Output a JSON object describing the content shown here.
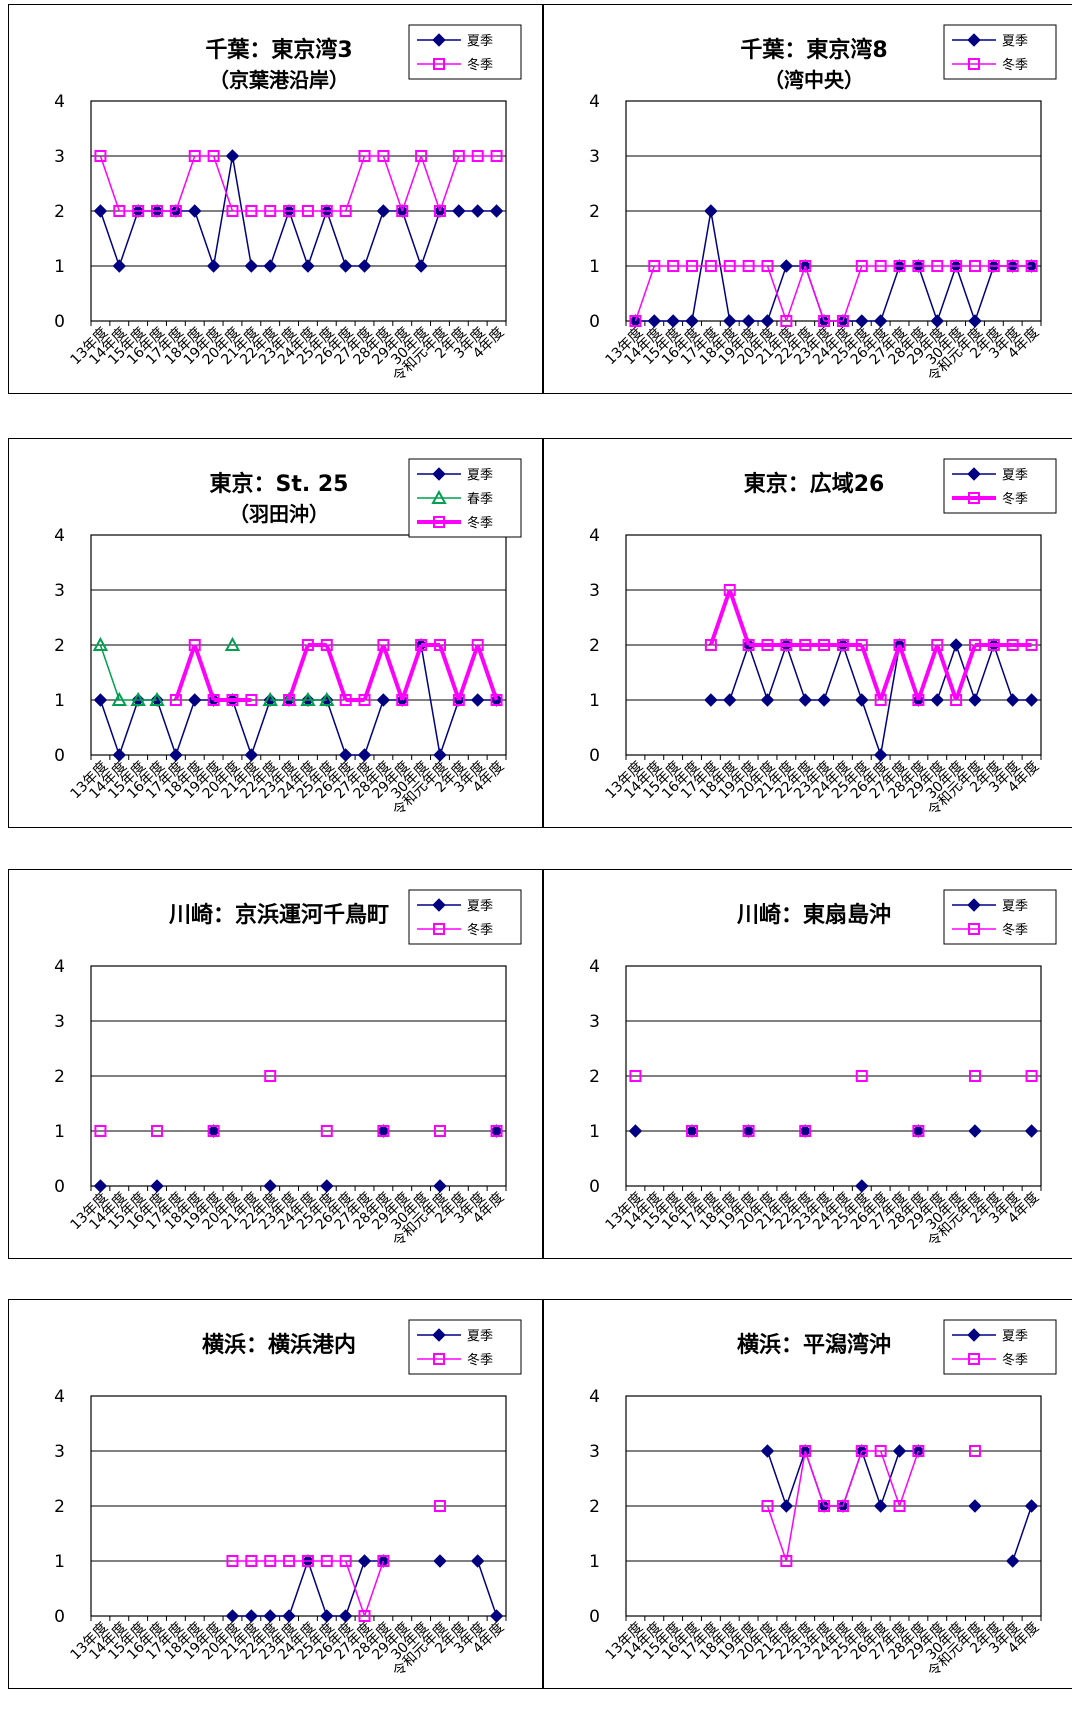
{
  "chart_data": [
    {
      "type": "line",
      "title": "千葉：東京湾3",
      "subtitle": "（京葉港沿岸）",
      "categories": [
        "13年度",
        "14年度",
        "15年度",
        "16年度",
        "17年度",
        "18年度",
        "19年度",
        "20年度",
        "21年度",
        "22年度",
        "23年度",
        "24年度",
        "25年度",
        "26年度",
        "27年度",
        "28年度",
        "29年度",
        "30年度",
        "令和元年度",
        "2年度",
        "3年度",
        "4年度"
      ],
      "ylim": [
        0,
        4
      ],
      "yticks": [
        "0",
        "1",
        "2",
        "3",
        "4"
      ],
      "series": [
        {
          "name": "夏季",
          "color": "#000080",
          "marker": "diamond",
          "values": [
            2,
            1,
            2,
            2,
            2,
            2,
            1,
            3,
            1,
            1,
            2,
            1,
            2,
            1,
            1,
            2,
            2,
            1,
            2,
            2,
            2,
            2
          ]
        },
        {
          "name": "冬季",
          "color": "#ff00ff",
          "marker": "square",
          "values": [
            3,
            2,
            2,
            2,
            2,
            3,
            3,
            2,
            2,
            2,
            2,
            2,
            2,
            2,
            3,
            3,
            2,
            3,
            2,
            3,
            3,
            3
          ]
        }
      ]
    },
    {
      "type": "line",
      "title": "千葉：東京湾8",
      "subtitle": "（湾中央）",
      "categories": [
        "13年度",
        "14年度",
        "15年度",
        "16年度",
        "17年度",
        "18年度",
        "19年度",
        "20年度",
        "21年度",
        "22年度",
        "23年度",
        "24年度",
        "25年度",
        "26年度",
        "27年度",
        "28年度",
        "29年度",
        "30年度",
        "令和元年度",
        "2年度",
        "3年度",
        "4年度"
      ],
      "ylim": [
        0,
        4
      ],
      "yticks": [
        "0",
        "1",
        "2",
        "3",
        "4"
      ],
      "series": [
        {
          "name": "夏季",
          "color": "#000080",
          "marker": "diamond",
          "values": [
            0,
            0,
            0,
            0,
            2,
            0,
            0,
            0,
            1,
            1,
            0,
            0,
            0,
            0,
            1,
            1,
            0,
            1,
            0,
            1,
            1,
            1
          ]
        },
        {
          "name": "冬季",
          "color": "#ff00ff",
          "marker": "square",
          "values": [
            0,
            1,
            1,
            1,
            1,
            1,
            1,
            1,
            0,
            1,
            0,
            0,
            1,
            1,
            1,
            1,
            1,
            1,
            1,
            1,
            1,
            1
          ]
        }
      ]
    },
    {
      "type": "line",
      "title": "東京：St. 25",
      "subtitle": "（羽田沖）",
      "categories": [
        "13年度",
        "14年度",
        "15年度",
        "16年度",
        "17年度",
        "18年度",
        "19年度",
        "20年度",
        "21年度",
        "22年度",
        "23年度",
        "24年度",
        "25年度",
        "26年度",
        "27年度",
        "28年度",
        "29年度",
        "30年度",
        "令和元年度",
        "2年度",
        "3年度",
        "4年度"
      ],
      "ylim": [
        0,
        4
      ],
      "yticks": [
        "0",
        "1",
        "2",
        "3",
        "4"
      ],
      "series": [
        {
          "name": "夏季",
          "color": "#000080",
          "marker": "diamond",
          "values": [
            1,
            0,
            1,
            1,
            0,
            1,
            1,
            1,
            0,
            1,
            1,
            1,
            1,
            0,
            0,
            1,
            1,
            2,
            0,
            1,
            1,
            1
          ]
        },
        {
          "name": "春季",
          "color": "#00a050",
          "marker": "triangle",
          "values": [
            2,
            1,
            1,
            1,
            null,
            null,
            null,
            2,
            null,
            1,
            1,
            1,
            1,
            null,
            null,
            null,
            null,
            null,
            null,
            null,
            null,
            null
          ]
        },
        {
          "name": "冬季",
          "color": "#ff00ff",
          "marker": "square",
          "width": 4,
          "values": [
            null,
            null,
            null,
            null,
            1,
            2,
            1,
            1,
            1,
            null,
            1,
            2,
            2,
            1,
            1,
            2,
            1,
            2,
            2,
            1,
            2,
            1
          ]
        }
      ]
    },
    {
      "type": "line",
      "title": "東京：広域26",
      "subtitle": "",
      "categories": [
        "13年度",
        "14年度",
        "15年度",
        "16年度",
        "17年度",
        "18年度",
        "19年度",
        "20年度",
        "21年度",
        "22年度",
        "23年度",
        "24年度",
        "25年度",
        "26年度",
        "27年度",
        "28年度",
        "29年度",
        "30年度",
        "令和元年度",
        "2年度",
        "3年度",
        "4年度"
      ],
      "ylim": [
        0,
        4
      ],
      "yticks": [
        "0",
        "1",
        "2",
        "3",
        "4"
      ],
      "series": [
        {
          "name": "夏季",
          "color": "#000080",
          "marker": "diamond",
          "values": [
            null,
            null,
            null,
            null,
            1,
            1,
            2,
            1,
            2,
            1,
            1,
            2,
            1,
            0,
            2,
            1,
            1,
            2,
            1,
            2,
            1,
            1
          ]
        },
        {
          "name": "冬季",
          "color": "#ff00ff",
          "marker": "square",
          "width": 4,
          "values": [
            null,
            null,
            null,
            null,
            2,
            3,
            2,
            2,
            2,
            2,
            2,
            2,
            2,
            1,
            2,
            1,
            2,
            1,
            2,
            2,
            2,
            2
          ]
        }
      ]
    },
    {
      "type": "line",
      "title": "川崎：京浜運河千鳥町",
      "subtitle": "",
      "categories": [
        "13年度",
        "14年度",
        "15年度",
        "16年度",
        "17年度",
        "18年度",
        "19年度",
        "20年度",
        "21年度",
        "22年度",
        "23年度",
        "24年度",
        "25年度",
        "26年度",
        "27年度",
        "28年度",
        "29年度",
        "30年度",
        "令和元年度",
        "2年度",
        "3年度",
        "4年度"
      ],
      "ylim": [
        0,
        4
      ],
      "yticks": [
        "0",
        "1",
        "2",
        "3",
        "4"
      ],
      "series": [
        {
          "name": "夏季",
          "color": "#000080",
          "marker": "diamond",
          "values": [
            0,
            null,
            null,
            0,
            null,
            null,
            1,
            null,
            null,
            0,
            null,
            null,
            0,
            null,
            null,
            1,
            null,
            null,
            0,
            null,
            null,
            1
          ]
        },
        {
          "name": "冬季",
          "color": "#ff00ff",
          "marker": "square",
          "values": [
            1,
            null,
            null,
            1,
            null,
            null,
            1,
            null,
            null,
            2,
            null,
            null,
            1,
            null,
            null,
            1,
            null,
            null,
            1,
            null,
            null,
            1
          ]
        }
      ]
    },
    {
      "type": "line",
      "title": "川崎：東扇島沖",
      "subtitle": "",
      "categories": [
        "13年度",
        "14年度",
        "15年度",
        "16年度",
        "17年度",
        "18年度",
        "19年度",
        "20年度",
        "21年度",
        "22年度",
        "23年度",
        "24年度",
        "25年度",
        "26年度",
        "27年度",
        "28年度",
        "29年度",
        "30年度",
        "令和元年度",
        "2年度",
        "3年度",
        "4年度"
      ],
      "ylim": [
        0,
        4
      ],
      "yticks": [
        "0",
        "1",
        "2",
        "3",
        "4"
      ],
      "series": [
        {
          "name": "夏季",
          "color": "#000080",
          "marker": "diamond",
          "values": [
            1,
            null,
            null,
            1,
            null,
            null,
            1,
            null,
            null,
            1,
            null,
            null,
            0,
            null,
            null,
            1,
            null,
            null,
            1,
            null,
            null,
            1
          ]
        },
        {
          "name": "冬季",
          "color": "#ff00ff",
          "marker": "square",
          "values": [
            2,
            null,
            null,
            1,
            null,
            null,
            1,
            null,
            null,
            1,
            null,
            null,
            2,
            null,
            null,
            1,
            null,
            null,
            2,
            null,
            null,
            2
          ]
        }
      ]
    },
    {
      "type": "line",
      "title": "横浜：横浜港内",
      "subtitle": "",
      "categories": [
        "13年度",
        "14年度",
        "15年度",
        "16年度",
        "17年度",
        "18年度",
        "19年度",
        "20年度",
        "21年度",
        "22年度",
        "23年度",
        "24年度",
        "25年度",
        "26年度",
        "27年度",
        "28年度",
        "29年度",
        "30年度",
        "令和元年度",
        "2年度",
        "3年度",
        "4年度"
      ],
      "ylim": [
        0,
        4
      ],
      "yticks": [
        "0",
        "1",
        "2",
        "3",
        "4"
      ],
      "series": [
        {
          "name": "夏季",
          "color": "#000080",
          "marker": "diamond",
          "values": [
            null,
            null,
            null,
            null,
            null,
            null,
            null,
            0,
            0,
            0,
            0,
            1,
            0,
            0,
            1,
            1,
            null,
            null,
            1,
            null,
            1,
            0
          ]
        },
        {
          "name": "冬季",
          "color": "#ff00ff",
          "marker": "square",
          "values": [
            null,
            null,
            null,
            null,
            null,
            null,
            null,
            1,
            1,
            1,
            1,
            1,
            1,
            1,
            0,
            1,
            null,
            null,
            2,
            null,
            null,
            null
          ]
        }
      ]
    },
    {
      "type": "line",
      "title": "横浜：平潟湾沖",
      "subtitle": "",
      "categories": [
        "13年度",
        "14年度",
        "15年度",
        "16年度",
        "17年度",
        "18年度",
        "19年度",
        "20年度",
        "21年度",
        "22年度",
        "23年度",
        "24年度",
        "25年度",
        "26年度",
        "27年度",
        "28年度",
        "29年度",
        "30年度",
        "令和元年度",
        "2年度",
        "3年度",
        "4年度"
      ],
      "ylim": [
        0,
        4
      ],
      "yticks": [
        "0",
        "1",
        "2",
        "3",
        "4"
      ],
      "series": [
        {
          "name": "夏季",
          "color": "#000080",
          "marker": "diamond",
          "values": [
            null,
            null,
            null,
            null,
            null,
            null,
            null,
            3,
            2,
            3,
            2,
            2,
            3,
            2,
            3,
            3,
            null,
            null,
            2,
            null,
            1,
            2
          ]
        },
        {
          "name": "冬季",
          "color": "#ff00ff",
          "marker": "square",
          "values": [
            null,
            null,
            null,
            null,
            null,
            null,
            null,
            2,
            1,
            3,
            2,
            2,
            3,
            3,
            2,
            3,
            null,
            null,
            3,
            null,
            null,
            null
          ]
        }
      ]
    }
  ]
}
